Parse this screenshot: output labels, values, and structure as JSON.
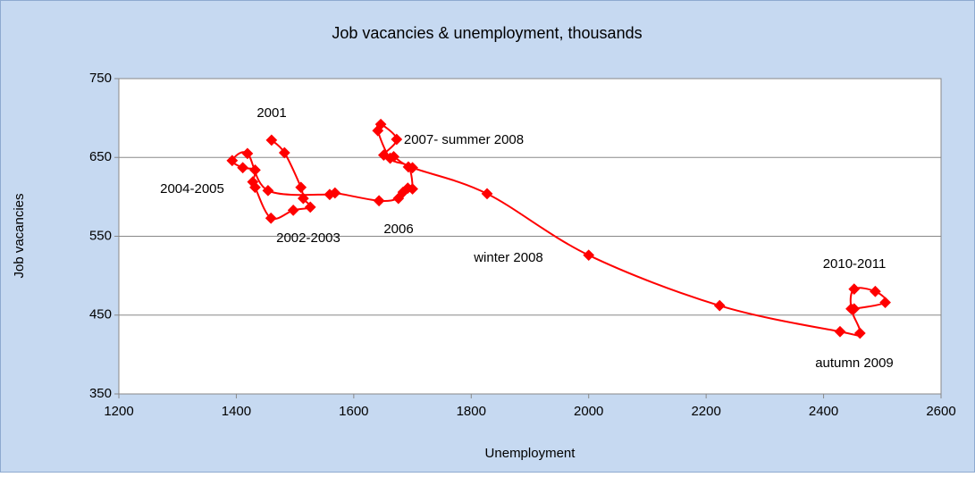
{
  "chart_data": {
    "type": "scatter",
    "title": "Job vacancies & unemployment, thousands",
    "x_label": "Unemployment",
    "y_label": "Job vacancies",
    "series": [
      {
        "name": "Job vacancies",
        "color": "#ff0000",
        "x": [
          1460,
          1482,
          1510,
          1514,
          1526,
          1497,
          1459,
          1432,
          1428,
          1432,
          1411,
          1393,
          1419,
          1454,
          1559,
          1568,
          1643,
          1676,
          1684,
          1692,
          1700,
          1693,
          1662,
          1641,
          1646,
          1673,
          1651,
          1668,
          1700,
          1827,
          2000,
          2223,
          2428,
          2462,
          2447,
          2452,
          2488,
          2505,
          2452
        ],
        "values": [
          672,
          656,
          612,
          598,
          587,
          583,
          573,
          612,
          619,
          634,
          637,
          646,
          655,
          608,
          603,
          605,
          595,
          598,
          606,
          611,
          610,
          638,
          649,
          684,
          692,
          673,
          653,
          651,
          637,
          604,
          526,
          462,
          429,
          427,
          458,
          483,
          480,
          466,
          458
        ]
      }
    ],
    "annotations": [
      "2001",
      "2004-2005",
      "2002-2003",
      "2006",
      "2007- summer 2008",
      "winter 2008",
      "2010-2011",
      "autumn 2009"
    ],
    "xlim": [
      1200,
      2600
    ],
    "xticks": [
      1200,
      1400,
      1600,
      1800,
      2000,
      2200,
      2400,
      2600
    ],
    "ylim": [
      350,
      750
    ],
    "yticks": [
      350,
      450,
      550,
      650,
      750
    ],
    "grid": true
  }
}
